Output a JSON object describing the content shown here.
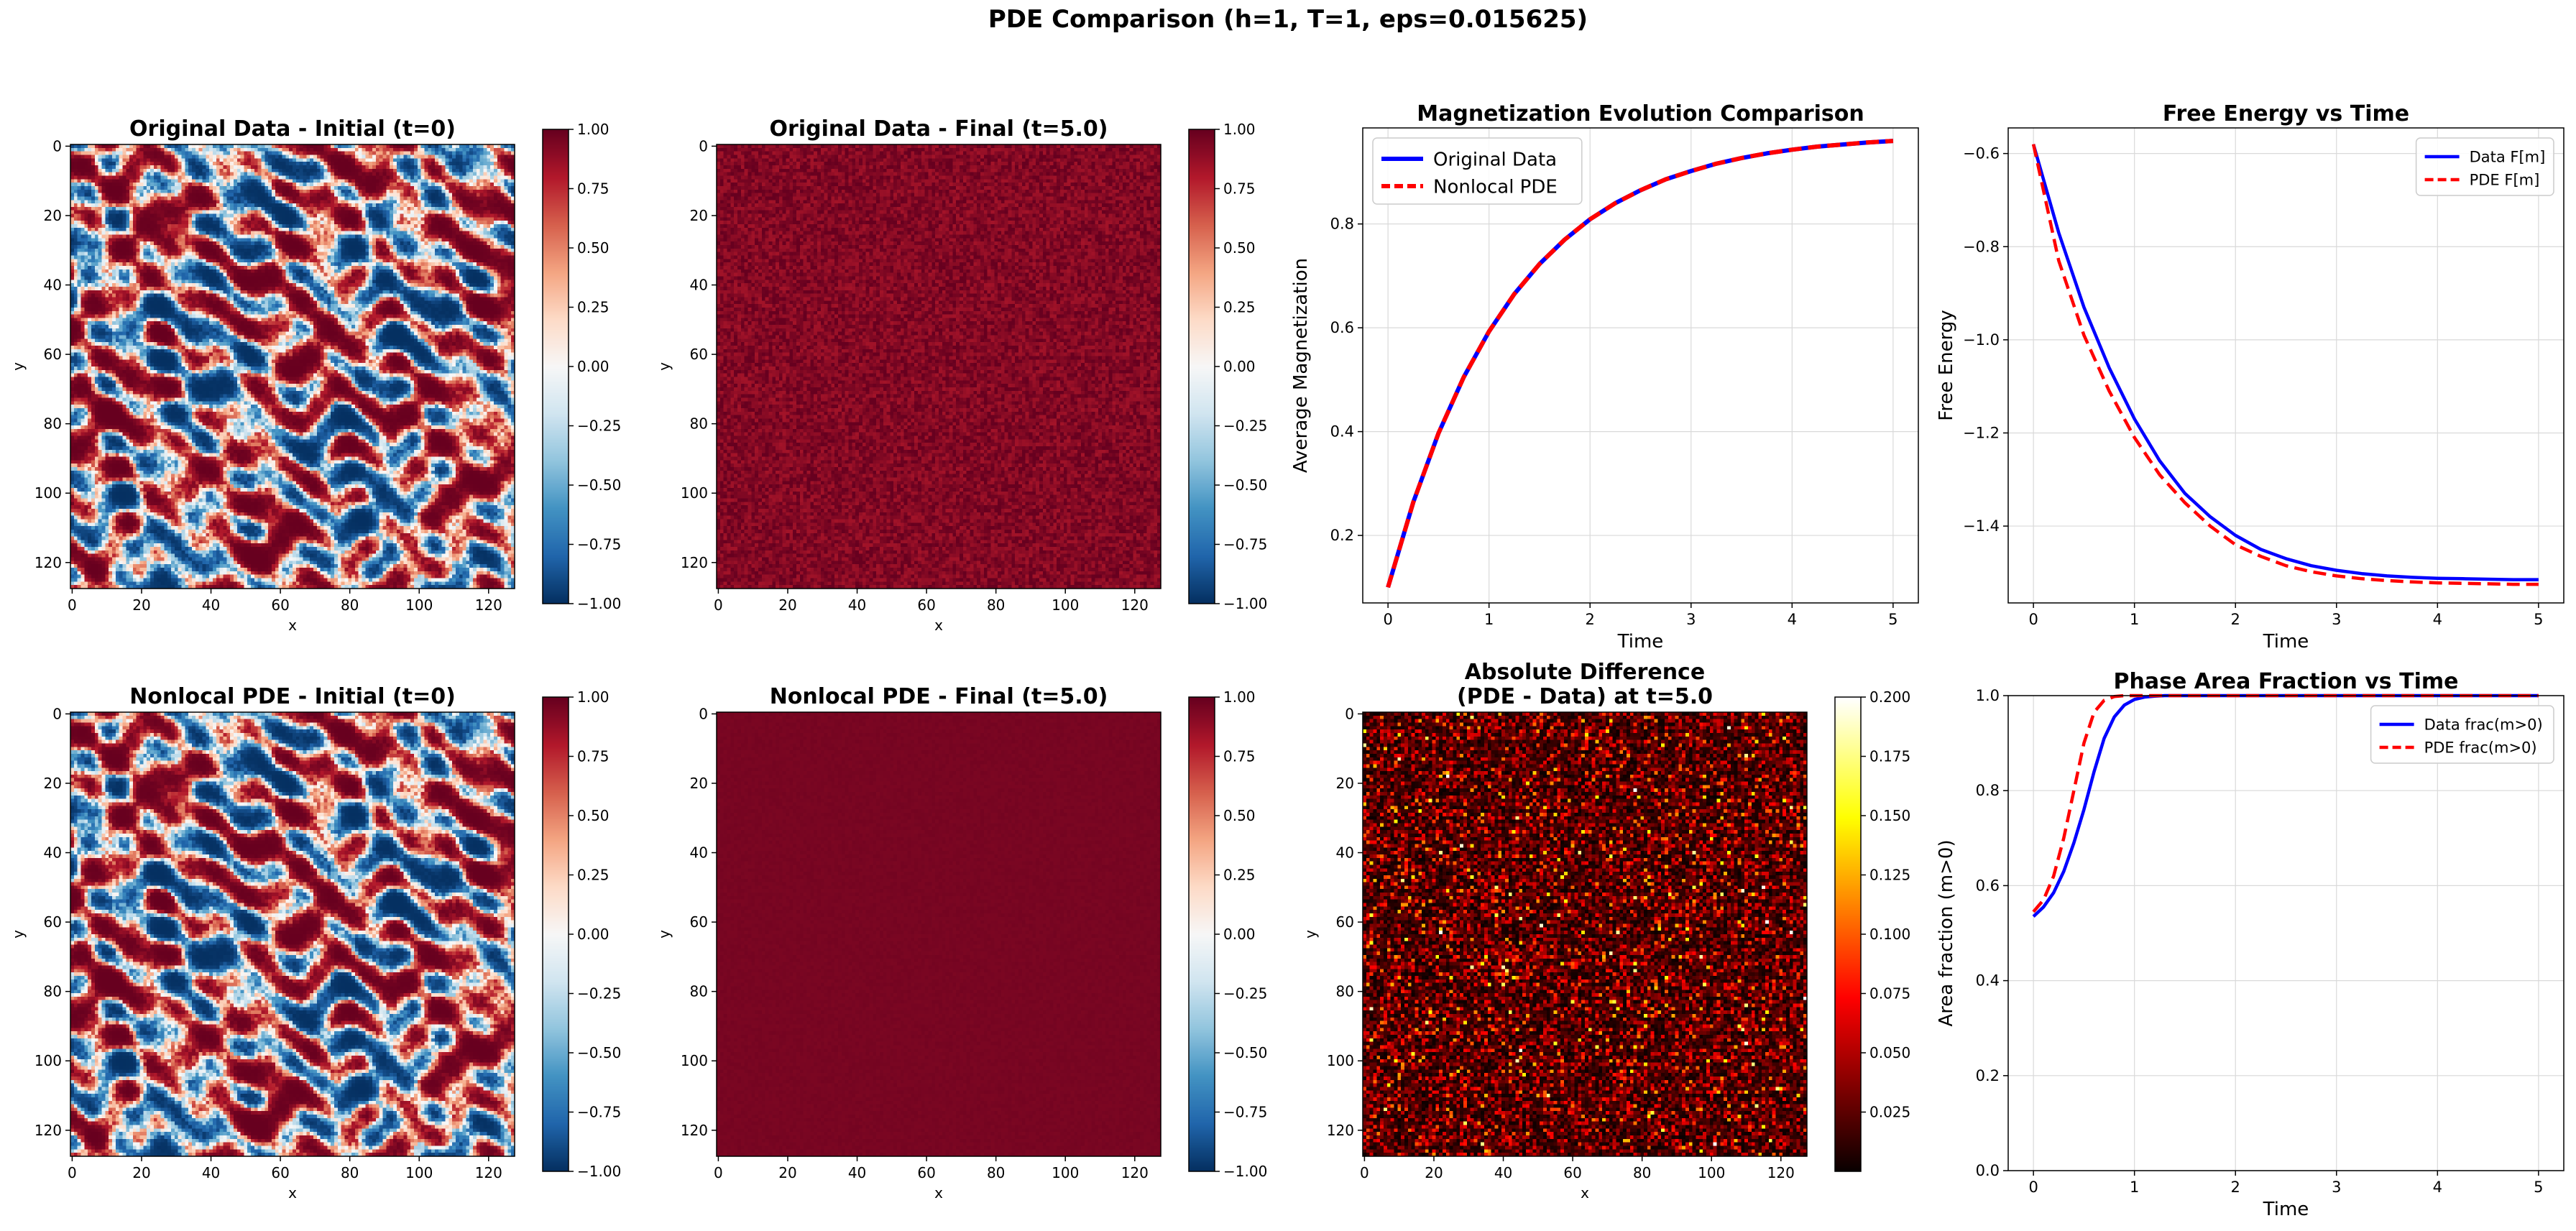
{
  "suptitle": "PDE Comparison (h=1, T=1, eps=0.015625)",
  "colors": {
    "data_line": "#0000ff",
    "pde_line": "#ff0000",
    "grid": "#d9d9d9",
    "axis": "#000000"
  },
  "chart_data": [
    {
      "id": "orig-initial",
      "type": "heatmap",
      "title": "Original Data - Initial (t=0)",
      "xlabel": "x",
      "ylabel": "y",
      "grid_size": 128,
      "colormap": "RdBu_r",
      "pattern": "domains",
      "seed": 11,
      "xticks": [
        "0",
        "20",
        "40",
        "60",
        "80",
        "100",
        "120"
      ],
      "yticks": [
        "0",
        "20",
        "40",
        "60",
        "80",
        "100",
        "120"
      ],
      "colorbar": {
        "range": [
          -1.0,
          1.0
        ],
        "ticks": [
          "1.00",
          "0.75",
          "0.50",
          "0.25",
          "0.00",
          "−0.25",
          "−0.50",
          "−0.75",
          "−1.00"
        ]
      }
    },
    {
      "id": "orig-final",
      "type": "heatmap",
      "title": "Original Data - Final (t=5.0)",
      "xlabel": "x",
      "ylabel": "y",
      "grid_size": 128,
      "colormap": "RdBu_r",
      "pattern": "noisy-high",
      "seed": 23,
      "xticks": [
        "0",
        "20",
        "40",
        "60",
        "80",
        "100",
        "120"
      ],
      "yticks": [
        "0",
        "20",
        "40",
        "60",
        "80",
        "100",
        "120"
      ],
      "colorbar": {
        "range": [
          -1.0,
          1.0
        ],
        "ticks": [
          "1.00",
          "0.75",
          "0.50",
          "0.25",
          "0.00",
          "−0.25",
          "−0.50",
          "−0.75",
          "−1.00"
        ]
      }
    },
    {
      "id": "magnetization",
      "type": "line",
      "title": "Magnetization Evolution Comparison",
      "xlabel": "Time",
      "ylabel": "Average Magnetization",
      "xlim": [
        -0.25,
        5.25
      ],
      "ylim": [
        0.07,
        0.985
      ],
      "xticks": [
        0,
        1,
        2,
        3,
        4,
        5
      ],
      "yticks": [
        0.2,
        0.4,
        0.6,
        0.8
      ],
      "legend": "top-left",
      "series": [
        {
          "name": "Original Data",
          "style": "solid",
          "color": "#0000ff",
          "x": [
            0,
            0.25,
            0.5,
            0.75,
            1,
            1.25,
            1.5,
            1.75,
            2,
            2.25,
            2.5,
            2.75,
            3,
            3.25,
            3.5,
            3.75,
            4,
            4.25,
            4.5,
            4.75,
            5
          ],
          "y": [
            0.1,
            0.264,
            0.397,
            0.505,
            0.593,
            0.665,
            0.723,
            0.77,
            0.809,
            0.84,
            0.865,
            0.886,
            0.902,
            0.916,
            0.927,
            0.936,
            0.943,
            0.949,
            0.953,
            0.957,
            0.96
          ]
        },
        {
          "name": "Nonlocal PDE",
          "style": "dashed",
          "color": "#ff0000",
          "x": [
            0,
            0.25,
            0.5,
            0.75,
            1,
            1.25,
            1.5,
            1.75,
            2,
            2.25,
            2.5,
            2.75,
            3,
            3.25,
            3.5,
            3.75,
            4,
            4.25,
            4.5,
            4.75,
            5
          ],
          "y": [
            0.1,
            0.264,
            0.397,
            0.505,
            0.593,
            0.665,
            0.723,
            0.77,
            0.809,
            0.84,
            0.865,
            0.886,
            0.902,
            0.916,
            0.927,
            0.936,
            0.943,
            0.949,
            0.953,
            0.957,
            0.96
          ]
        }
      ]
    },
    {
      "id": "free-energy",
      "type": "line",
      "title": "Free Energy vs Time",
      "xlabel": "Time",
      "ylabel": "Free Energy",
      "xlim": [
        -0.25,
        5.25
      ],
      "ylim": [
        -1.565,
        -0.545
      ],
      "xticks": [
        0,
        1,
        2,
        3,
        4,
        5
      ],
      "yticks": [
        -1.4,
        -1.2,
        -1.0,
        -0.8,
        -0.6
      ],
      "yticklabels": [
        "−1.4",
        "−1.2",
        "−1.0",
        "−0.8",
        "−0.6"
      ],
      "legend": "top-right",
      "series": [
        {
          "name": "Data F[m]",
          "style": "solid",
          "color": "#0000ff",
          "x": [
            0,
            0.25,
            0.5,
            0.75,
            1,
            1.25,
            1.5,
            1.75,
            2,
            2.25,
            2.5,
            2.75,
            3,
            3.25,
            3.5,
            3.75,
            4,
            4.25,
            4.5,
            4.75,
            5
          ],
          "y": [
            -0.58,
            -0.77,
            -0.93,
            -1.06,
            -1.17,
            -1.26,
            -1.33,
            -1.38,
            -1.42,
            -1.45,
            -1.47,
            -1.485,
            -1.495,
            -1.502,
            -1.507,
            -1.51,
            -1.512,
            -1.513,
            -1.514,
            -1.515,
            -1.515
          ]
        },
        {
          "name": "PDE F[m]",
          "style": "dashed",
          "color": "#ff0000",
          "x": [
            0,
            0.25,
            0.5,
            0.75,
            1,
            1.25,
            1.5,
            1.75,
            2,
            2.25,
            2.5,
            2.75,
            3,
            3.25,
            3.5,
            3.75,
            4,
            4.25,
            4.5,
            4.75,
            5
          ],
          "y": [
            -0.58,
            -0.83,
            -0.99,
            -1.11,
            -1.21,
            -1.29,
            -1.35,
            -1.4,
            -1.44,
            -1.465,
            -1.485,
            -1.498,
            -1.507,
            -1.513,
            -1.517,
            -1.52,
            -1.522,
            -1.523,
            -1.524,
            -1.525,
            -1.525
          ]
        }
      ]
    },
    {
      "id": "pde-initial",
      "type": "heatmap",
      "title": "Nonlocal PDE - Initial (t=0)",
      "xlabel": "x",
      "ylabel": "y",
      "grid_size": 128,
      "colormap": "RdBu_r",
      "pattern": "domains",
      "seed": 11,
      "xticks": [
        "0",
        "20",
        "40",
        "60",
        "80",
        "100",
        "120"
      ],
      "yticks": [
        "0",
        "20",
        "40",
        "60",
        "80",
        "100",
        "120"
      ],
      "colorbar": {
        "range": [
          -1.0,
          1.0
        ],
        "ticks": [
          "1.00",
          "0.75",
          "0.50",
          "0.25",
          "0.00",
          "−0.25",
          "−0.50",
          "−0.75",
          "−1.00"
        ]
      }
    },
    {
      "id": "pde-final",
      "type": "heatmap",
      "title": "Nonlocal PDE - Final (t=5.0)",
      "xlabel": "x",
      "ylabel": "y",
      "grid_size": 128,
      "colormap": "RdBu_r",
      "pattern": "uniform-high",
      "seed": 5,
      "xticks": [
        "0",
        "20",
        "40",
        "60",
        "80",
        "100",
        "120"
      ],
      "yticks": [
        "0",
        "20",
        "40",
        "60",
        "80",
        "100",
        "120"
      ],
      "colorbar": {
        "range": [
          -1.0,
          1.0
        ],
        "ticks": [
          "1.00",
          "0.75",
          "0.50",
          "0.25",
          "0.00",
          "−0.25",
          "−0.50",
          "−0.75",
          "−1.00"
        ]
      }
    },
    {
      "id": "abs-diff",
      "type": "heatmap",
      "title": "Absolute Difference\n(PDE - Data) at t=5.0",
      "xlabel": "x",
      "ylabel": "y",
      "grid_size": 128,
      "colormap": "hot",
      "pattern": "abs-noise",
      "seed": 37,
      "xticks": [
        "0",
        "20",
        "40",
        "60",
        "80",
        "100",
        "120"
      ],
      "yticks": [
        "0",
        "20",
        "40",
        "60",
        "80",
        "100",
        "120"
      ],
      "colorbar": {
        "range": [
          0.0,
          0.2
        ],
        "ticks": [
          "0.200",
          "0.175",
          "0.150",
          "0.125",
          "0.100",
          "0.075",
          "0.050",
          "0.025"
        ]
      }
    },
    {
      "id": "area-fraction",
      "type": "line",
      "title": "Phase Area Fraction vs Time",
      "xlabel": "Time",
      "ylabel": "Area fraction (m>0)",
      "xlim": [
        -0.25,
        5.25
      ],
      "ylim": [
        0.0,
        1.0
      ],
      "xticks": [
        0,
        1,
        2,
        3,
        4,
        5
      ],
      "yticks": [
        0.0,
        0.2,
        0.4,
        0.6,
        0.8,
        1.0
      ],
      "legend": "top-right",
      "series": [
        {
          "name": "Data frac(m>0)",
          "style": "solid",
          "color": "#0000ff",
          "x": [
            0,
            0.1,
            0.2,
            0.3,
            0.4,
            0.5,
            0.6,
            0.7,
            0.8,
            0.9,
            1.0,
            1.1,
            1.2,
            1.3,
            1.5,
            2,
            3,
            4,
            5
          ],
          "y": [
            0.535,
            0.555,
            0.585,
            0.63,
            0.69,
            0.76,
            0.84,
            0.91,
            0.955,
            0.98,
            0.992,
            0.997,
            0.999,
            1,
            1,
            1,
            1,
            1,
            1
          ]
        },
        {
          "name": "PDE frac(m>0)",
          "style": "dashed",
          "color": "#ff0000",
          "x": [
            0,
            0.1,
            0.2,
            0.3,
            0.4,
            0.5,
            0.6,
            0.7,
            0.8,
            0.9,
            1.0,
            1.2,
            1.5,
            2,
            3,
            4,
            5
          ],
          "y": [
            0.545,
            0.57,
            0.62,
            0.7,
            0.8,
            0.9,
            0.965,
            0.99,
            0.998,
            1,
            1,
            1,
            1,
            1,
            1,
            1,
            1
          ]
        }
      ]
    }
  ]
}
